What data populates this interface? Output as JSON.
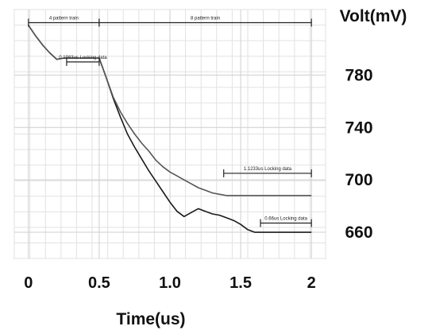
{
  "chart_data": {
    "type": "line",
    "title": "",
    "xlabel": "Time(us)",
    "ylabel": "Volt(mV)",
    "xlim": [
      -0.1,
      2.1
    ],
    "ylim": [
      640,
      830
    ],
    "xticks": [
      0,
      0.5,
      1.0,
      1.5,
      2
    ],
    "xtick_labels": [
      "0",
      "0.5",
      "1.0",
      "1.5",
      "2"
    ],
    "yticks": [
      660,
      700,
      740,
      780
    ],
    "ytick_labels": [
      "660",
      "700",
      "740",
      "780"
    ],
    "grid": true,
    "legend": "none",
    "series": [
      {
        "color": "#1a1a1a",
        "x": [
          0,
          0.05,
          0.1,
          0.15,
          0.2,
          0.25,
          0.3,
          0.35,
          0.4,
          0.45,
          0.5,
          0.55,
          0.6,
          0.65,
          0.7,
          0.75,
          0.8,
          0.85,
          0.9,
          0.95,
          1.0,
          1.05,
          1.1,
          1.15,
          1.2,
          1.25,
          1.3,
          1.35,
          1.4,
          1.45,
          1.5,
          1.55,
          1.6,
          1.65,
          1.7,
          1.75,
          1.8,
          1.85,
          1.9,
          1.95,
          2.0
        ],
        "y": [
          818,
          810,
          803,
          797,
          792,
          793,
          793,
          793,
          793,
          793,
          793,
          778,
          762,
          748,
          735,
          725,
          716,
          707,
          699,
          691,
          683,
          676,
          672,
          675,
          678,
          676,
          674,
          673,
          671,
          669,
          666,
          662,
          660,
          660,
          660,
          660,
          660,
          660,
          660,
          660,
          660
        ]
      },
      {
        "color": "#555555",
        "x": [
          0,
          0.05,
          0.1,
          0.15,
          0.2,
          0.25,
          0.3,
          0.35,
          0.4,
          0.45,
          0.5,
          0.55,
          0.6,
          0.65,
          0.7,
          0.75,
          0.8,
          0.85,
          0.9,
          0.95,
          1.0,
          1.05,
          1.1,
          1.15,
          1.2,
          1.25,
          1.3,
          1.35,
          1.4,
          1.45,
          1.5,
          1.55,
          1.6,
          1.65,
          1.7,
          1.75,
          1.8,
          1.85,
          1.9,
          1.95,
          2.0
        ],
        "y": [
          818,
          810,
          803,
          797,
          792,
          793,
          793,
          793,
          793,
          793,
          793,
          778,
          763,
          752,
          743,
          735,
          728,
          722,
          715,
          710,
          706,
          703,
          700,
          697,
          694,
          692,
          690,
          689,
          688,
          688,
          688,
          688,
          688,
          688,
          688,
          688,
          688,
          688,
          688,
          688,
          688
        ]
      }
    ],
    "annotations": [
      {
        "text": "4 pattern train",
        "x1": 0,
        "x2": 0.5,
        "y": 820
      },
      {
        "text": "8 pattern train",
        "x1": 0.5,
        "x2": 2,
        "y": 820
      },
      {
        "text": "0.1983us Locking data",
        "x1": 0.27,
        "x2": 0.5,
        "y": 790
      },
      {
        "text": "1.1233us Locking data",
        "x1": 1.38,
        "x2": 2,
        "y": 705
      },
      {
        "text": "0.66us Locking data",
        "x1": 1.64,
        "x2": 2,
        "y": 667
      }
    ]
  }
}
